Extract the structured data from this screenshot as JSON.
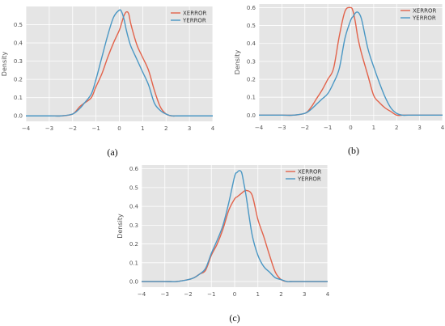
{
  "figure": {
    "colors": {
      "xerror": "#e2634b",
      "yerror": "#4a97c4",
      "panel_bg": "#e5e5e5",
      "grid": "#ffffff",
      "tick_text": "#555555"
    }
  },
  "chart_data": [
    {
      "type": "line",
      "panel_caption": "(a)",
      "xlabel": "",
      "ylabel": "Density",
      "xlim": [
        -4,
        4
      ],
      "ylim": [
        -0.03,
        0.6
      ],
      "x_ticks": [
        -4,
        -3,
        -2,
        -1,
        0,
        1,
        2,
        3,
        4
      ],
      "y_ticks": [
        0.0,
        0.1,
        0.2,
        0.3,
        0.4,
        0.5
      ],
      "grid": true,
      "legend": "top-right",
      "x": [
        -4.0,
        -3.0,
        -2.5,
        -2.0,
        -1.7,
        -1.5,
        -1.2,
        -1.0,
        -0.75,
        -0.5,
        -0.25,
        0.0,
        0.1,
        0.2,
        0.3,
        0.4,
        0.5,
        0.75,
        1.0,
        1.25,
        1.5,
        1.75,
        2.0,
        2.25,
        2.5,
        3.0,
        4.0
      ],
      "series": [
        {
          "name": "XERROR",
          "color_key": "xerror",
          "values": [
            0.0,
            0.0,
            0.0,
            0.01,
            0.05,
            0.07,
            0.1,
            0.16,
            0.23,
            0.32,
            0.4,
            0.47,
            0.51,
            0.55,
            0.57,
            0.56,
            0.5,
            0.39,
            0.32,
            0.25,
            0.14,
            0.05,
            0.01,
            0.0,
            0.0,
            0.0,
            0.0
          ]
        },
        {
          "name": "YERROR",
          "color_key": "yerror",
          "values": [
            0.0,
            0.0,
            0.0,
            0.01,
            0.04,
            0.07,
            0.12,
            0.2,
            0.32,
            0.44,
            0.54,
            0.58,
            0.57,
            0.53,
            0.47,
            0.42,
            0.38,
            0.31,
            0.24,
            0.17,
            0.07,
            0.03,
            0.01,
            0.0,
            0.0,
            0.0,
            0.0
          ]
        }
      ]
    },
    {
      "type": "line",
      "panel_caption": "(b)",
      "xlabel": "",
      "ylabel": "Density",
      "xlim": [
        -4,
        4
      ],
      "ylim": [
        -0.03,
        0.62
      ],
      "x_ticks": [
        -4,
        -3,
        -2,
        -1,
        0,
        1,
        2,
        3,
        4
      ],
      "y_ticks": [
        0.0,
        0.1,
        0.2,
        0.3,
        0.4,
        0.5,
        0.6
      ],
      "grid": true,
      "legend": "top-right",
      "x": [
        -4.0,
        -3.0,
        -2.5,
        -2.0,
        -1.75,
        -1.5,
        -1.25,
        -1.0,
        -0.75,
        -0.5,
        -0.25,
        0.0,
        0.1,
        0.2,
        0.3,
        0.4,
        0.5,
        0.75,
        1.0,
        1.25,
        1.5,
        1.75,
        2.0,
        2.25,
        2.5,
        3.0,
        4.0
      ],
      "series": [
        {
          "name": "XERROR",
          "color_key": "xerror",
          "values": [
            0.0,
            0.0,
            0.0,
            0.01,
            0.04,
            0.09,
            0.14,
            0.2,
            0.26,
            0.44,
            0.58,
            0.6,
            0.58,
            0.52,
            0.44,
            0.38,
            0.33,
            0.22,
            0.11,
            0.07,
            0.04,
            0.02,
            0.0,
            0.0,
            0.0,
            0.0,
            0.0
          ]
        },
        {
          "name": "YERROR",
          "color_key": "yerror",
          "values": [
            0.0,
            0.0,
            0.0,
            0.01,
            0.03,
            0.06,
            0.09,
            0.12,
            0.18,
            0.26,
            0.43,
            0.53,
            0.55,
            0.57,
            0.575,
            0.56,
            0.52,
            0.37,
            0.27,
            0.18,
            0.1,
            0.04,
            0.01,
            0.0,
            0.0,
            0.0,
            0.0
          ]
        }
      ]
    },
    {
      "type": "line",
      "panel_caption": "(c)",
      "xlabel": "",
      "ylabel": "Density",
      "xlim": [
        -4,
        4
      ],
      "ylim": [
        -0.03,
        0.62
      ],
      "x_ticks": [
        -4,
        -3,
        -2,
        -1,
        0,
        1,
        2,
        3,
        4
      ],
      "y_ticks": [
        0.0,
        0.1,
        0.2,
        0.3,
        0.4,
        0.5,
        0.6
      ],
      "grid": true,
      "legend": "top-right",
      "x": [
        -4.0,
        -3.0,
        -2.5,
        -2.0,
        -1.75,
        -1.5,
        -1.25,
        -1.0,
        -0.75,
        -0.5,
        -0.25,
        0.0,
        0.1,
        0.2,
        0.3,
        0.4,
        0.5,
        0.75,
        1.0,
        1.25,
        1.5,
        1.75,
        2.0,
        2.25,
        2.5,
        3.0,
        4.0
      ],
      "series": [
        {
          "name": "XERROR",
          "color_key": "xerror",
          "values": [
            0.0,
            0.0,
            0.0,
            0.01,
            0.02,
            0.04,
            0.06,
            0.14,
            0.2,
            0.28,
            0.38,
            0.44,
            0.45,
            0.46,
            0.47,
            0.48,
            0.485,
            0.46,
            0.33,
            0.24,
            0.14,
            0.05,
            0.01,
            0.0,
            0.0,
            0.0,
            0.0
          ]
        },
        {
          "name": "YERROR",
          "color_key": "yerror",
          "values": [
            0.0,
            0.0,
            0.0,
            0.01,
            0.02,
            0.04,
            0.07,
            0.15,
            0.22,
            0.3,
            0.42,
            0.56,
            0.58,
            0.59,
            0.58,
            0.52,
            0.45,
            0.25,
            0.14,
            0.08,
            0.05,
            0.02,
            0.01,
            0.0,
            0.0,
            0.0,
            0.0
          ]
        }
      ]
    }
  ]
}
